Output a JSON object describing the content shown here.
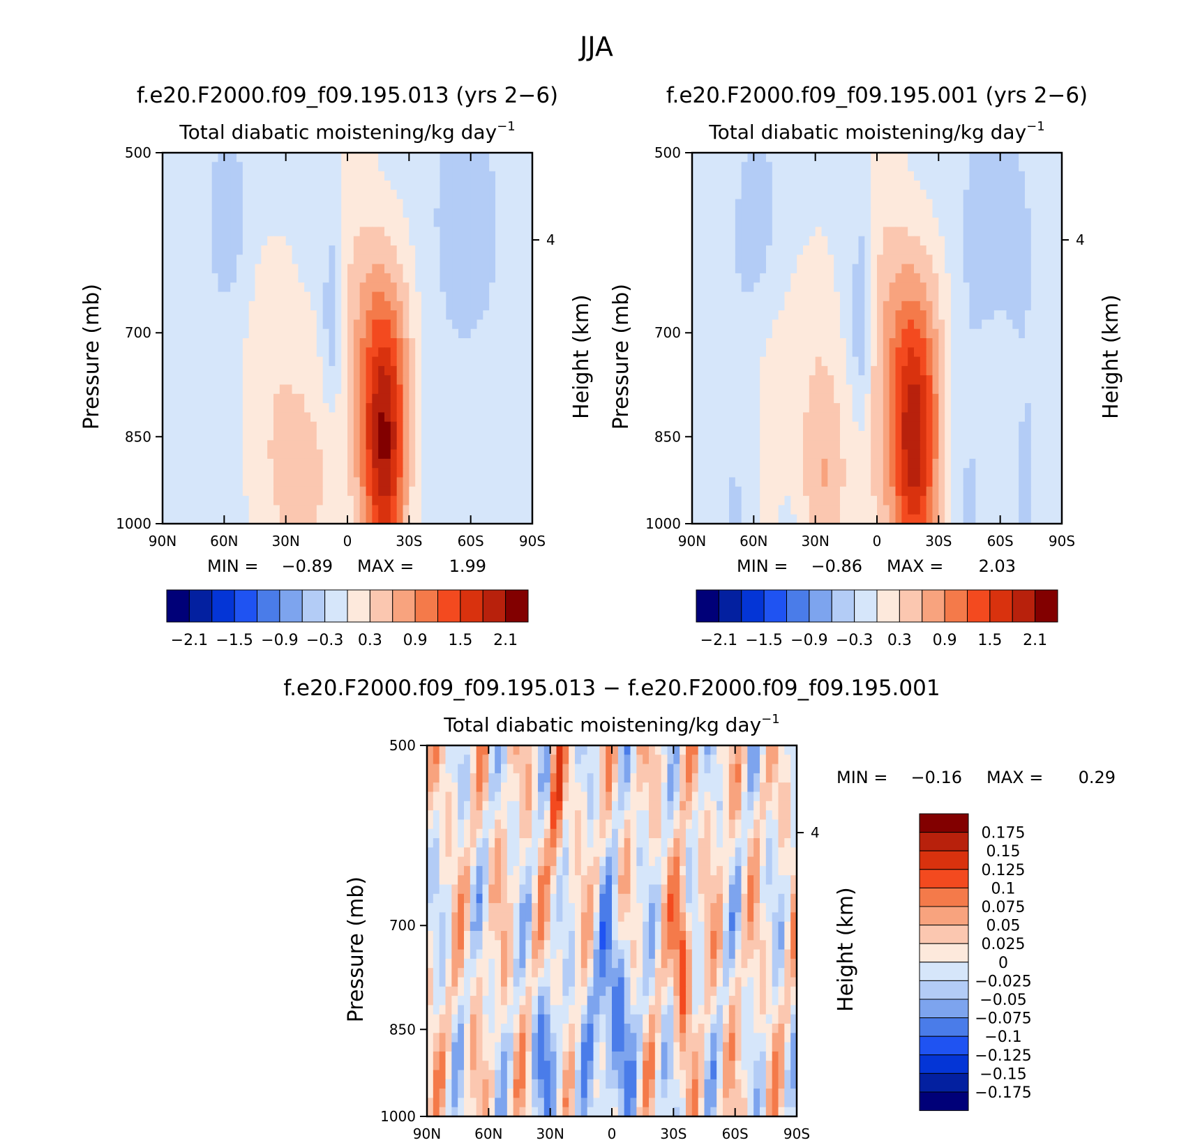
{
  "figure_title": "JJA",
  "colors": {
    "seq_diverging_18": [
      "#000078",
      "#0320a0",
      "#0435d6",
      "#1f53f2",
      "#4a7ce9",
      "#7da4ee",
      "#b3ccf6",
      "#d6e6fa",
      "#fde9dc",
      "#fbc7b0",
      "#f8a37e",
      "#f47a4a",
      "#f34a1f",
      "#d9320e",
      "#b8210c",
      "#820000"
    ],
    "diff_16": [
      "#000078",
      "#0320a0",
      "#0435d6",
      "#1f53f2",
      "#4a7ce9",
      "#7da4ee",
      "#b3ccf6",
      "#d6e6fa",
      "#fde9dc",
      "#fbc7b0",
      "#f8a37e",
      "#f47a4a",
      "#f34a1f",
      "#d9320e",
      "#b8210c",
      "#820000"
    ]
  },
  "chart_data": [
    {
      "type": "heatmap",
      "title": "f.e20.F2000.f09_f09.195.013 (yrs 2−6)",
      "subtitle_main": "Total diabatic moistening/kg day",
      "subtitle_sup": "−1",
      "xlabel": "",
      "ylabel": "Pressure (mb)",
      "ylabel_right": "Height (km)",
      "x_ticks": [
        "90N",
        "60N",
        "30N",
        "0",
        "30S",
        "60S",
        "90S"
      ],
      "y_ticks": [
        "500",
        "700",
        "850",
        "1000"
      ],
      "y_right_ticks": [
        "4"
      ],
      "ylim": [
        1000,
        500
      ],
      "stats": {
        "min_label": "MIN =",
        "min": "−0.89",
        "max_label": "MAX =",
        "max": "1.99"
      },
      "colorbar_labels": [
        "−2.1",
        "−1.5",
        "−0.9",
        "−0.3",
        "0.3",
        "0.9",
        "1.5",
        "2.1"
      ]
    },
    {
      "type": "heatmap",
      "title": "f.e20.F2000.f09_f09.195.001 (yrs 2−6)",
      "subtitle_main": "Total diabatic moistening/kg day",
      "subtitle_sup": "−1",
      "xlabel": "",
      "ylabel": "Pressure (mb)",
      "ylabel_right": "Height (km)",
      "x_ticks": [
        "90N",
        "60N",
        "30N",
        "0",
        "30S",
        "60S",
        "90S"
      ],
      "y_ticks": [
        "500",
        "700",
        "850",
        "1000"
      ],
      "y_right_ticks": [
        "4"
      ],
      "ylim": [
        1000,
        500
      ],
      "stats": {
        "min_label": "MIN =",
        "min": "−0.86",
        "max_label": "MAX =",
        "max": "2.03"
      },
      "colorbar_labels": [
        "−2.1",
        "−1.5",
        "−0.9",
        "−0.3",
        "0.3",
        "0.9",
        "1.5",
        "2.1"
      ]
    },
    {
      "type": "heatmap",
      "title": "f.e20.F2000.f09_f09.195.013 − f.e20.F2000.f09_f09.195.001",
      "subtitle_main": "Total diabatic moistening/kg day",
      "subtitle_sup": "−1",
      "xlabel": "",
      "ylabel": "Pressure (mb)",
      "ylabel_right": "Height (km)",
      "x_ticks": [
        "90N",
        "60N",
        "30N",
        "0",
        "30S",
        "60S",
        "90S"
      ],
      "y_ticks": [
        "500",
        "700",
        "850",
        "1000"
      ],
      "y_right_ticks": [
        "4"
      ],
      "ylim": [
        1000,
        500
      ],
      "stats": {
        "min_label": "MIN =",
        "min": "−0.16",
        "max_label": "MAX =",
        "max": "0.29"
      },
      "colorbar_labels": [
        "0.175",
        "0.15",
        "0.125",
        "0.1",
        "0.075",
        "0.05",
        "0.025",
        "0",
        "−0.025",
        "−0.05",
        "−0.075",
        "−0.1",
        "−0.125",
        "−0.15",
        "−0.175"
      ]
    }
  ]
}
